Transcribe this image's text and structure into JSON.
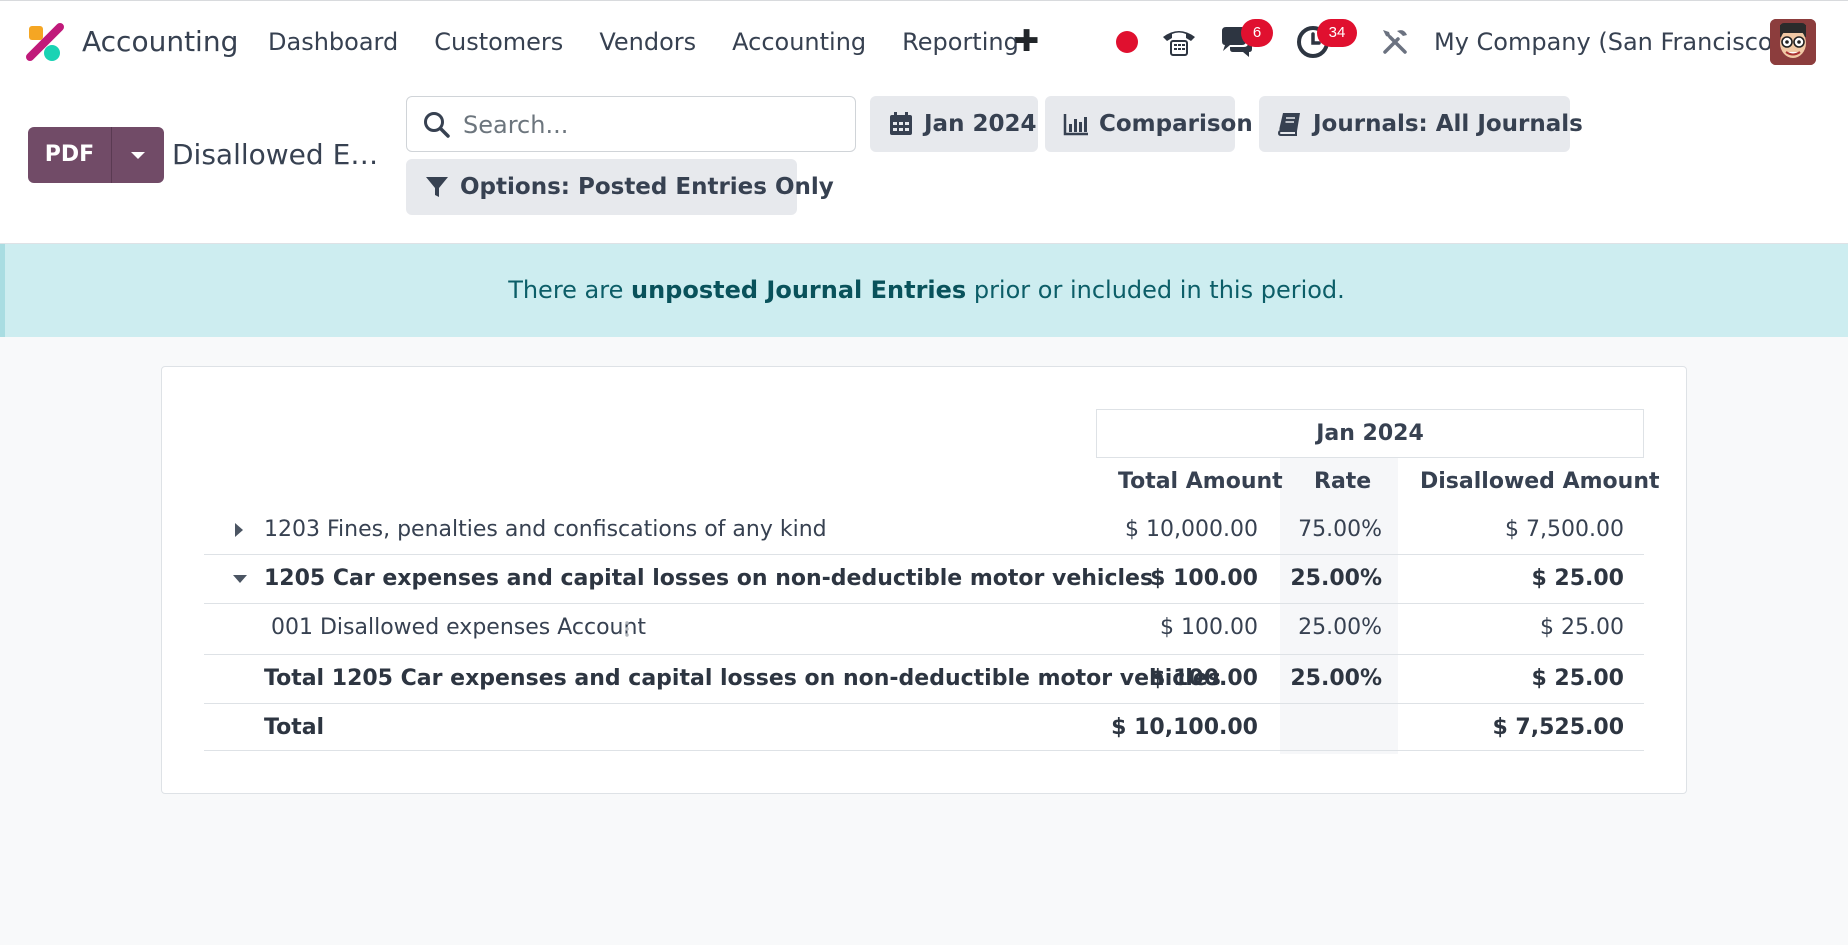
{
  "navbar": {
    "app_name": "Accounting",
    "menu": [
      "Dashboard",
      "Customers",
      "Vendors",
      "Accounting",
      "Reporting"
    ],
    "messages_badge": "6",
    "activities_badge": "34",
    "company": "My Company (San Francisco)",
    "colors": {
      "badge": "#e0102f",
      "recording": "#e0102f"
    }
  },
  "control": {
    "pdf_label": "PDF",
    "report_title": "Disallowed E…",
    "search_placeholder": "Search...",
    "filters": {
      "date": "Jan 2024",
      "comparison": "Comparison",
      "journals": "Journals: All Journals",
      "options": "Options: Posted Entries Only"
    },
    "colors": {
      "primary": "#714b67",
      "filter_bg": "#e7e9ed"
    }
  },
  "alert": {
    "prefix": "There are ",
    "link": "unposted Journal Entries",
    "suffix": " prior or included in this period."
  },
  "report": {
    "period": "Jan 2024",
    "columns": [
      "Total Amount",
      "Rate",
      "Disallowed Amount"
    ],
    "rows": [
      {
        "label": "1203 Fines, penalties and confiscations of any kind",
        "total": "$ 10,000.00",
        "rate": "75.00%",
        "disallowed": "$ 7,500.00"
      },
      {
        "label": "1205 Car expenses and capital losses on non-deductible motor vehicles",
        "total": "$ 100.00",
        "rate": "25.00%",
        "disallowed": "$ 25.00"
      },
      {
        "label": "001 Disallowed expenses Account",
        "total": "$ 100.00",
        "rate": "25.00%",
        "disallowed": "$ 25.00"
      },
      {
        "label": "Total 1205 Car expenses and capital losses on non-deductible motor vehicles",
        "total": "$ 100.00",
        "rate": "25.00%",
        "disallowed": "$ 25.00"
      },
      {
        "label": "Total",
        "total": "$ 10,100.00",
        "rate": "",
        "disallowed": "$ 7,525.00"
      }
    ]
  }
}
